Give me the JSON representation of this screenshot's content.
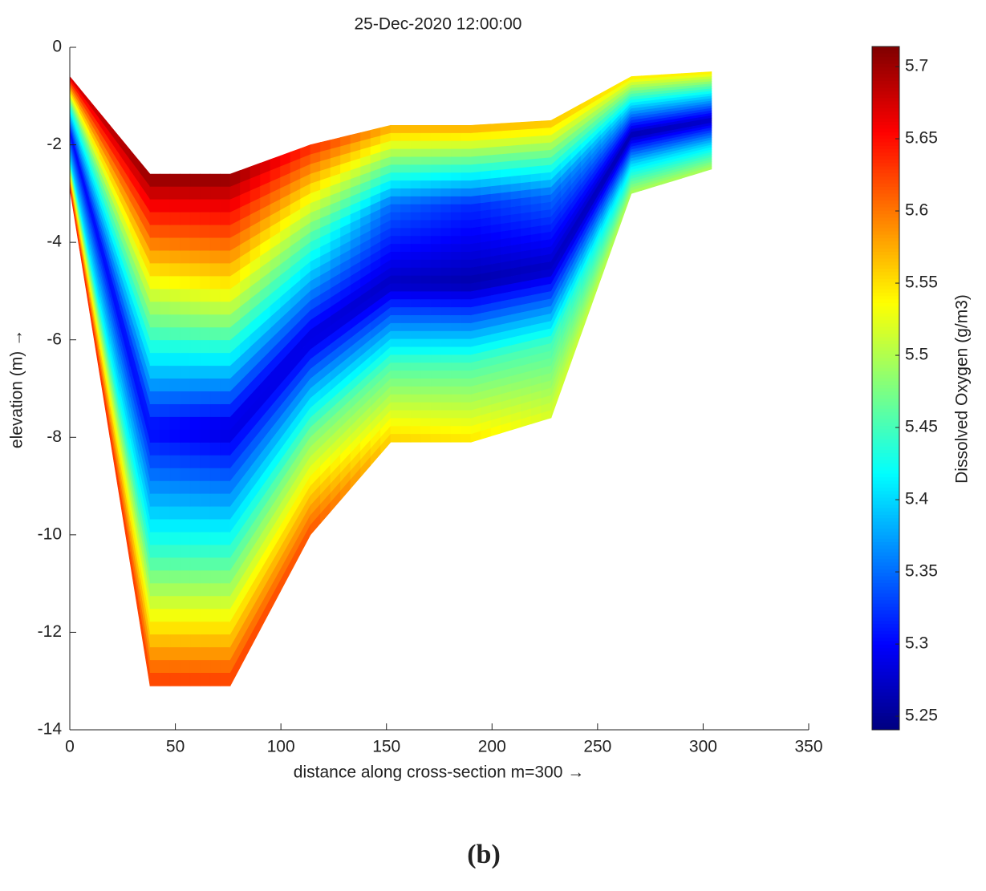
{
  "chart_data": {
    "type": "section",
    "title": "25-Dec-2020 12:00:00",
    "xlabel": "distance along cross-section m=300 →",
    "ylabel": "elevation (m) →",
    "x": [
      0,
      38,
      76,
      114,
      152,
      190,
      228,
      266,
      304
    ],
    "top": [
      -0.6,
      -2.6,
      -2.6,
      -2.0,
      -1.6,
      -1.6,
      -1.5,
      -0.6,
      -0.5
    ],
    "bottom": [
      -2.9,
      -13.1,
      -13.1,
      -10.0,
      -8.1,
      -8.1,
      -7.6,
      -3.0,
      -2.5
    ],
    "values": [
      [
        5.68,
        5.45,
        5.3,
        5.4,
        5.65
      ],
      [
        5.71,
        5.5,
        5.3,
        5.45,
        5.63
      ],
      [
        5.71,
        5.52,
        5.28,
        5.45,
        5.63
      ],
      [
        5.64,
        5.45,
        5.28,
        5.48,
        5.62
      ],
      [
        5.58,
        5.35,
        5.27,
        5.45,
        5.56
      ],
      [
        5.58,
        5.32,
        5.26,
        5.45,
        5.55
      ],
      [
        5.57,
        5.35,
        5.27,
        5.45,
        5.52
      ],
      [
        5.55,
        5.4,
        5.26,
        5.4,
        5.5
      ],
      [
        5.55,
        5.4,
        5.27,
        5.4,
        5.5
      ]
    ],
    "xlim": [
      0,
      350
    ],
    "xticks": [
      0,
      50,
      100,
      150,
      200,
      250,
      300,
      350
    ],
    "ylim": [
      -14,
      0
    ],
    "yticks": [
      0,
      -2,
      -4,
      -6,
      -8,
      -10,
      -12,
      -14
    ],
    "colormap": "jet",
    "colorbar": {
      "label": "Dissolved Oxygen (g/m3)",
      "clim": [
        5.2406,
        5.7139
      ],
      "ticks": [
        5.7,
        5.65,
        5.6,
        5.55,
        5.5,
        5.45,
        5.4,
        5.35,
        5.3,
        5.25
      ]
    },
    "caption": "(b)"
  }
}
